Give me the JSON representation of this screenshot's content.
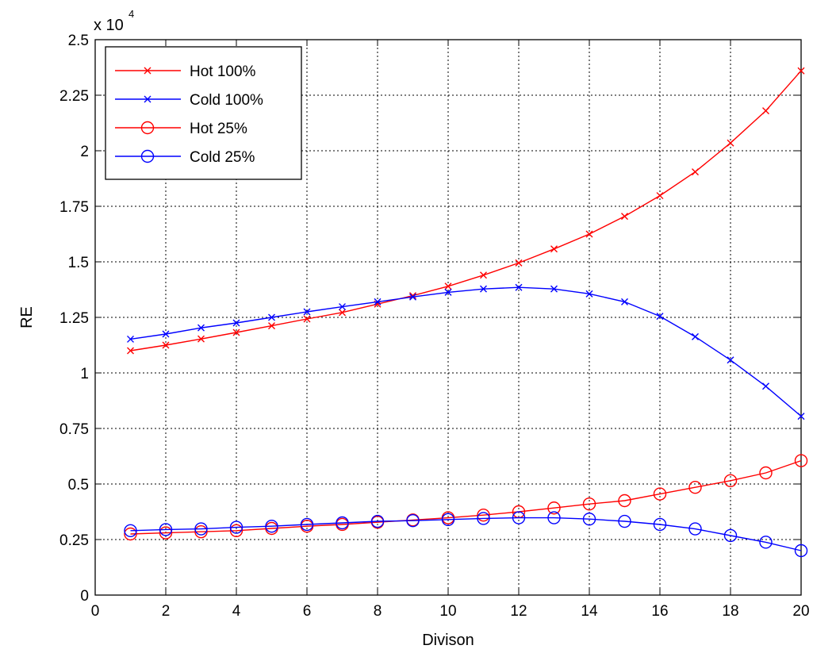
{
  "chart_data": {
    "type": "line",
    "xlabel": "Divison",
    "ylabel": "RE",
    "exponent_base": "x 10",
    "exponent_power": "4",
    "xlim": [
      0,
      20
    ],
    "ylim": [
      0,
      2.5
    ],
    "xticks": [
      0,
      2,
      4,
      6,
      8,
      10,
      12,
      14,
      16,
      18,
      20
    ],
    "yticks": [
      0,
      0.25,
      0.5,
      0.75,
      1,
      1.25,
      1.5,
      1.75,
      2,
      2.25,
      2.5
    ],
    "ytick_labels": [
      "0",
      "0.25",
      "0.5",
      "0.75",
      "1",
      "1.25",
      "1.5",
      "1.75",
      "2",
      "2.25",
      "2.5"
    ],
    "grid": true,
    "legend_position": "top-left",
    "x": [
      1,
      2,
      3,
      4,
      5,
      6,
      7,
      8,
      9,
      10,
      11,
      12,
      13,
      14,
      15,
      16,
      17,
      18,
      19,
      20
    ],
    "series": [
      {
        "name": "Hot 100%",
        "color": "#ff0000",
        "marker": "x",
        "values": [
          1.1,
          1.125,
          1.153,
          1.182,
          1.212,
          1.243,
          1.272,
          1.31,
          1.348,
          1.39,
          1.44,
          1.495,
          1.558,
          1.625,
          1.705,
          1.798,
          1.905,
          2.035,
          2.18,
          2.36
        ]
      },
      {
        "name": "Cold 100%",
        "color": "#0000ff",
        "marker": "x",
        "values": [
          1.152,
          1.175,
          1.203,
          1.225,
          1.25,
          1.275,
          1.298,
          1.32,
          1.342,
          1.363,
          1.378,
          1.385,
          1.378,
          1.356,
          1.32,
          1.255,
          1.163,
          1.058,
          0.94,
          0.805
        ]
      },
      {
        "name": "Hot 25%",
        "color": "#ff0000",
        "marker": "o",
        "values": [
          0.275,
          0.28,
          0.285,
          0.29,
          0.3,
          0.31,
          0.318,
          0.328,
          0.338,
          0.348,
          0.36,
          0.375,
          0.392,
          0.41,
          0.425,
          0.455,
          0.485,
          0.515,
          0.55,
          0.605
        ]
      },
      {
        "name": "Cold 25%",
        "color": "#0000ff",
        "marker": "o",
        "values": [
          0.29,
          0.295,
          0.298,
          0.305,
          0.31,
          0.318,
          0.325,
          0.332,
          0.335,
          0.34,
          0.345,
          0.348,
          0.348,
          0.342,
          0.332,
          0.318,
          0.298,
          0.268,
          0.238,
          0.2
        ]
      }
    ]
  }
}
